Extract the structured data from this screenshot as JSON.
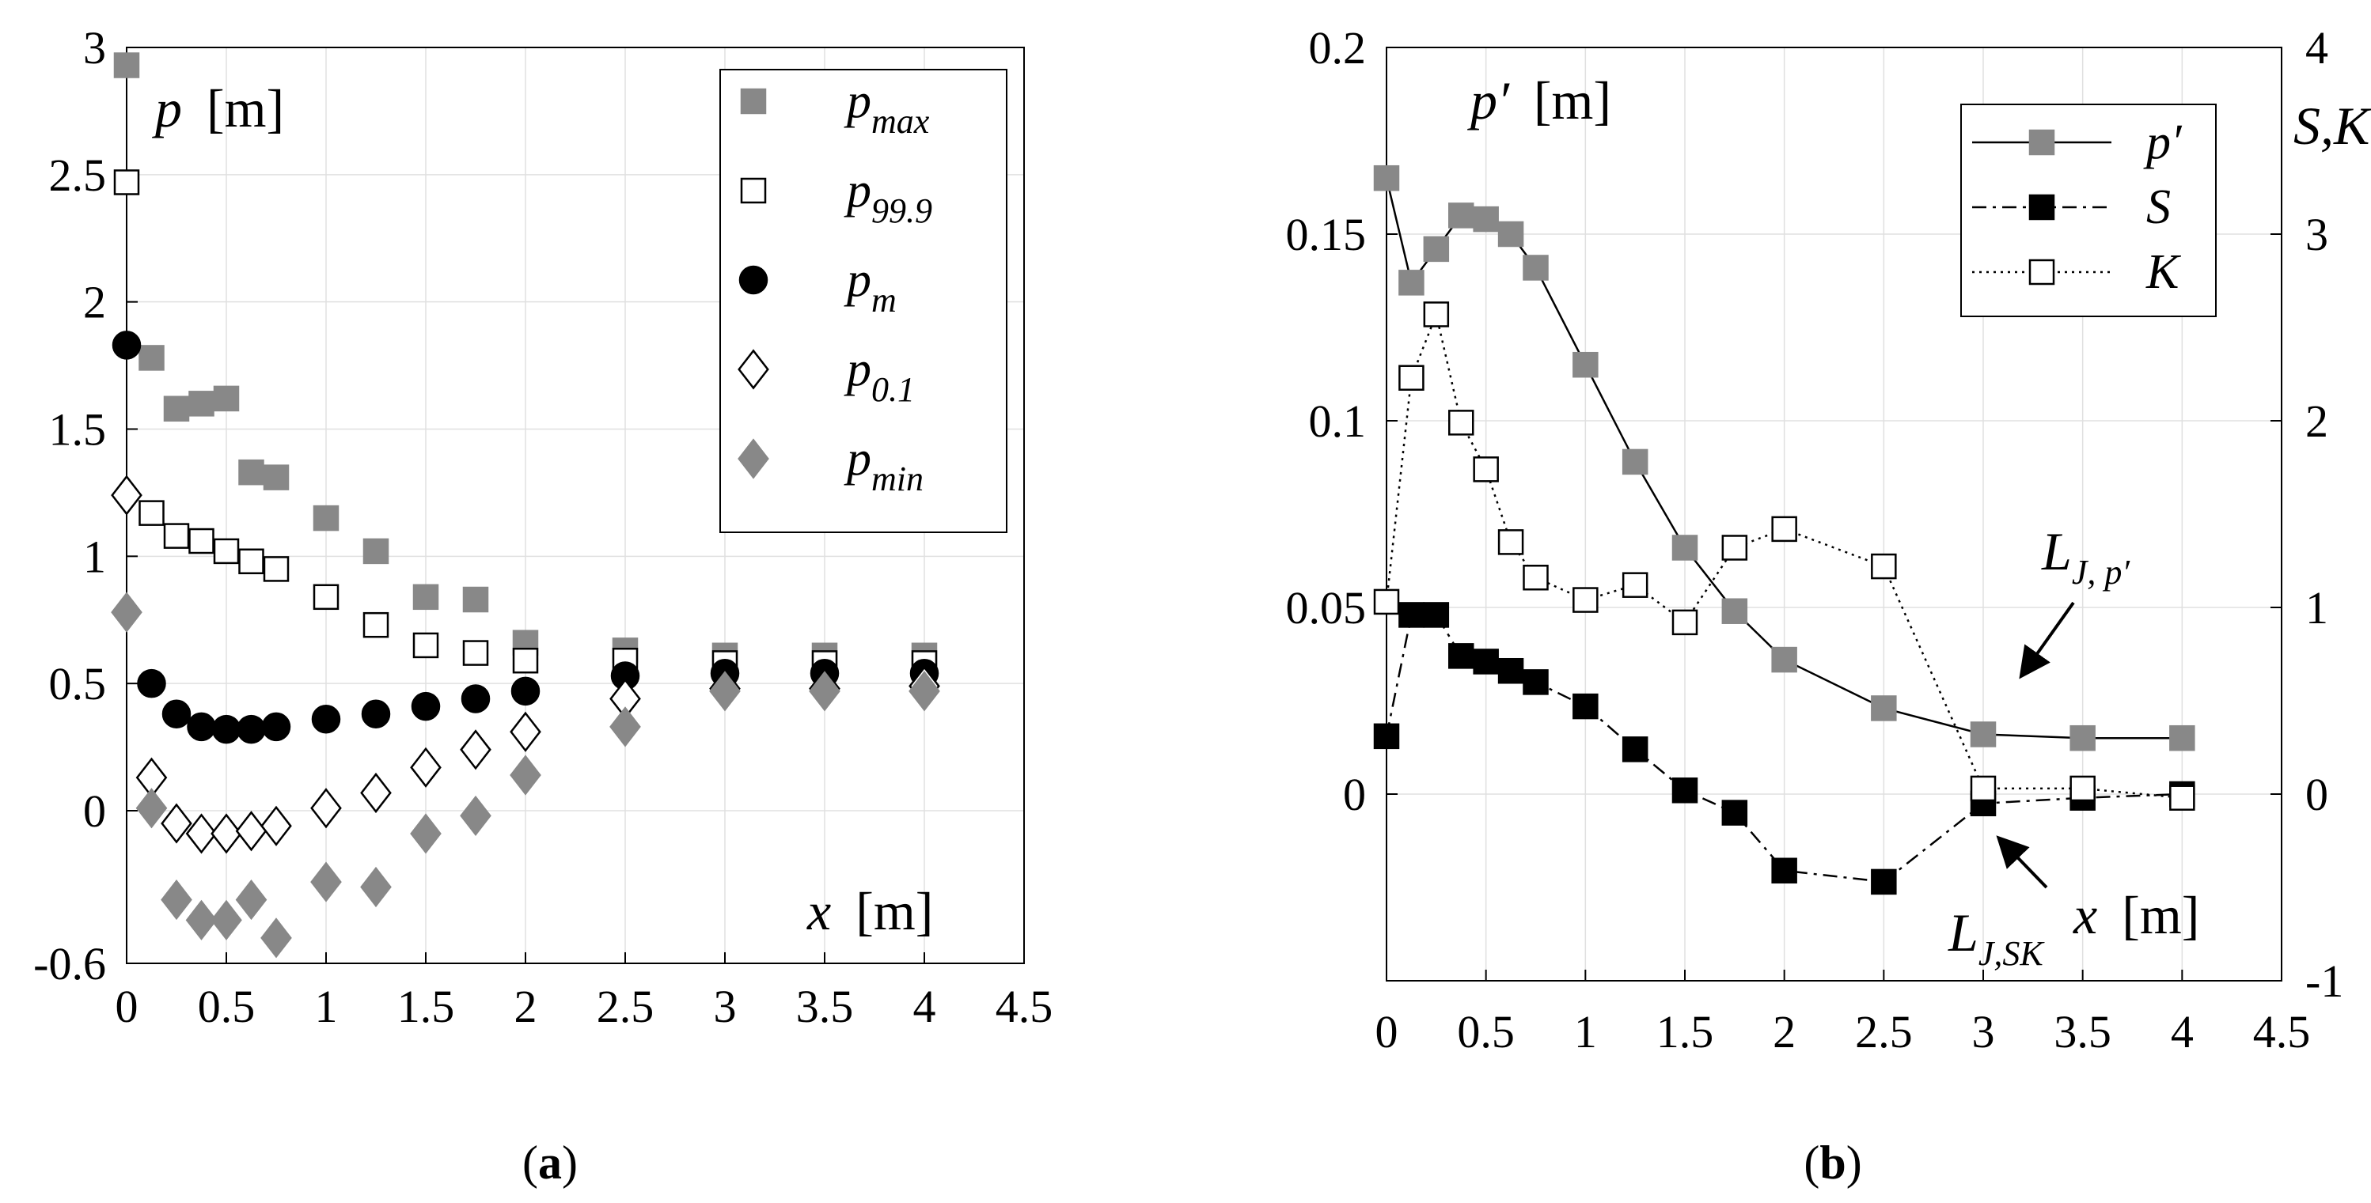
{
  "chart_data": [
    {
      "id": "a",
      "type": "scatter",
      "caption_open": "(",
      "caption_letter": "a",
      "caption_close": ")",
      "ylabel_var": "p",
      "ylabel_unit": "[m]",
      "xlabel_var": "x",
      "xlabel_unit": "[m]",
      "xlim": [
        0,
        4.5
      ],
      "ylim": [
        -0.6,
        3
      ],
      "xticks": [
        "0",
        "0.5",
        "1",
        "1.5",
        "2",
        "2.5",
        "3",
        "3.5",
        "4",
        "4.5"
      ],
      "xtick_values": [
        0,
        0.5,
        1,
        1.5,
        2,
        2.5,
        3,
        3.5,
        4,
        4.5
      ],
      "yticks": [
        "-0.6",
        "0",
        "0.5",
        "1",
        "1.5",
        "2",
        "2.5",
        "3"
      ],
      "ytick_values": [
        -0.6,
        0,
        0.5,
        1,
        1.5,
        2,
        2.5,
        3
      ],
      "x": [
        0,
        0.125,
        0.25,
        0.375,
        0.5,
        0.625,
        0.75,
        1,
        1.25,
        1.5,
        1.75,
        2,
        2.5,
        3,
        3.5,
        4
      ],
      "series": [
        {
          "key": "pmax",
          "base": "p",
          "sub": "max",
          "marker": "square",
          "color": "#888888",
          "filled": true,
          "values": [
            2.93,
            1.78,
            1.58,
            1.6,
            1.62,
            1.33,
            1.31,
            1.15,
            1.02,
            0.84,
            0.83,
            0.66,
            0.63,
            0.61,
            0.61,
            0.61
          ]
        },
        {
          "key": "p999",
          "base": "p",
          "sub": "99.9",
          "marker": "square",
          "color": "#000000",
          "filled": false,
          "values": [
            2.47,
            1.17,
            1.08,
            1.06,
            1.02,
            0.98,
            0.95,
            0.84,
            0.73,
            0.65,
            0.62,
            0.59,
            0.59,
            0.58,
            0.58,
            0.58
          ]
        },
        {
          "key": "pm",
          "base": "p",
          "sub": "m",
          "marker": "circle",
          "color": "#000000",
          "filled": true,
          "values": [
            1.83,
            0.5,
            0.38,
            0.33,
            0.32,
            0.32,
            0.33,
            0.36,
            0.38,
            0.41,
            0.44,
            0.47,
            0.53,
            0.54,
            0.54,
            0.54
          ]
        },
        {
          "key": "p01",
          "base": "p",
          "sub": "0.1",
          "marker": "diamond",
          "color": "#000000",
          "filled": false,
          "values": [
            1.24,
            0.13,
            -0.05,
            -0.09,
            -0.09,
            -0.08,
            -0.06,
            0.01,
            0.07,
            0.17,
            0.24,
            0.31,
            0.44,
            0.48,
            0.48,
            0.49
          ]
        },
        {
          "key": "pmin",
          "base": "p",
          "sub": "min",
          "marker": "diamond",
          "color": "#888888",
          "filled": true,
          "values": [
            0.78,
            0.01,
            -0.35,
            -0.43,
            -0.43,
            -0.35,
            -0.5,
            -0.28,
            -0.3,
            -0.09,
            -0.02,
            0.14,
            0.33,
            0.47,
            0.47,
            0.47
          ]
        }
      ]
    },
    {
      "id": "b",
      "type": "line",
      "caption_open": "(",
      "caption_letter": "b",
      "caption_close": ")",
      "ylabel_var": "p′",
      "ylabel_unit": "[m]",
      "ylabel_right": "S,K",
      "xlabel_var": "x",
      "xlabel_unit": "[m]",
      "xlim": [
        0,
        4.5
      ],
      "ylim": [
        -0.05,
        0.2
      ],
      "ylim_right": [
        -1,
        4
      ],
      "xticks": [
        "0",
        "0.5",
        "1",
        "1.5",
        "2",
        "2.5",
        "3",
        "3.5",
        "4",
        "4.5"
      ],
      "xtick_values": [
        0,
        0.5,
        1,
        1.5,
        2,
        2.5,
        3,
        3.5,
        4,
        4.5
      ],
      "yticks": [
        "0",
        "0.05",
        "0.1",
        "0.15",
        "0.2"
      ],
      "ytick_values": [
        0,
        0.05,
        0.1,
        0.15,
        0.2
      ],
      "yticks_right": [
        "-1",
        "0",
        "1",
        "2",
        "3",
        "4"
      ],
      "ytick_values_right": [
        -1,
        0,
        1,
        2,
        3,
        4
      ],
      "x": [
        0,
        0.125,
        0.25,
        0.375,
        0.5,
        0.625,
        0.75,
        1,
        1.25,
        1.5,
        1.75,
        2,
        2.5,
        3,
        3.5,
        4
      ],
      "series": [
        {
          "key": "pprime",
          "label": "p′",
          "axis": "left",
          "marker": "square",
          "color": "#888888",
          "filled": true,
          "line": "solid",
          "values": [
            0.165,
            0.137,
            0.146,
            0.155,
            0.154,
            0.15,
            0.141,
            0.115,
            0.089,
            0.066,
            0.049,
            0.036,
            0.023,
            0.016,
            0.015,
            0.015
          ]
        },
        {
          "key": "S",
          "label": "S",
          "axis": "right",
          "marker": "square",
          "color": "#000000",
          "filled": true,
          "line": "dashdot",
          "values": [
            0.31,
            0.96,
            0.96,
            0.74,
            0.71,
            0.66,
            0.6,
            0.47,
            0.24,
            0.02,
            -0.1,
            -0.41,
            -0.47,
            -0.05,
            -0.02,
            0.0
          ]
        },
        {
          "key": "K",
          "label": "K",
          "axis": "right",
          "marker": "square",
          "color": "#000000",
          "filled": false,
          "line": "dotted",
          "values": [
            1.03,
            2.23,
            2.57,
            1.99,
            1.74,
            1.35,
            1.16,
            1.04,
            1.12,
            0.92,
            1.32,
            1.42,
            1.22,
            0.03,
            0.03,
            -0.02
          ]
        }
      ],
      "annotations": [
        {
          "base": "L",
          "sub": "J, p′"
        },
        {
          "base": "L",
          "sub": "J,SK"
        }
      ]
    }
  ]
}
